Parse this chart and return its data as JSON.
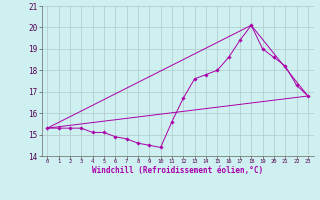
{
  "xlabel": "Windchill (Refroidissement éolien,°C)",
  "ylabel": "",
  "bg_color": "#cff0f0",
  "grid_color": "#b0c8c8",
  "line_color": "#aa00aa",
  "xlim": [
    -0.5,
    23.5
  ],
  "ylim": [
    14,
    21
  ],
  "yticks": [
    14,
    15,
    16,
    17,
    18,
    19,
    20,
    21
  ],
  "xticks": [
    0,
    1,
    2,
    3,
    4,
    5,
    6,
    7,
    8,
    9,
    10,
    11,
    12,
    13,
    14,
    15,
    16,
    17,
    18,
    19,
    20,
    21,
    22,
    23
  ],
  "line1_x": [
    0,
    1,
    2,
    3,
    4,
    5,
    6,
    7,
    8,
    9,
    10,
    11,
    12,
    13,
    14,
    15,
    16,
    17,
    18,
    19,
    20,
    21,
    22,
    23
  ],
  "line1_y": [
    15.3,
    15.3,
    15.3,
    15.3,
    15.1,
    15.1,
    14.9,
    14.8,
    14.6,
    14.5,
    14.4,
    15.6,
    16.7,
    17.6,
    17.8,
    18.0,
    18.6,
    19.4,
    20.1,
    19.0,
    18.6,
    18.2,
    17.3,
    16.8
  ],
  "line2_x": [
    0,
    23
  ],
  "line2_y": [
    15.3,
    16.8
  ],
  "line3_x": [
    0,
    18,
    23
  ],
  "line3_y": [
    15.3,
    20.1,
    16.8
  ]
}
